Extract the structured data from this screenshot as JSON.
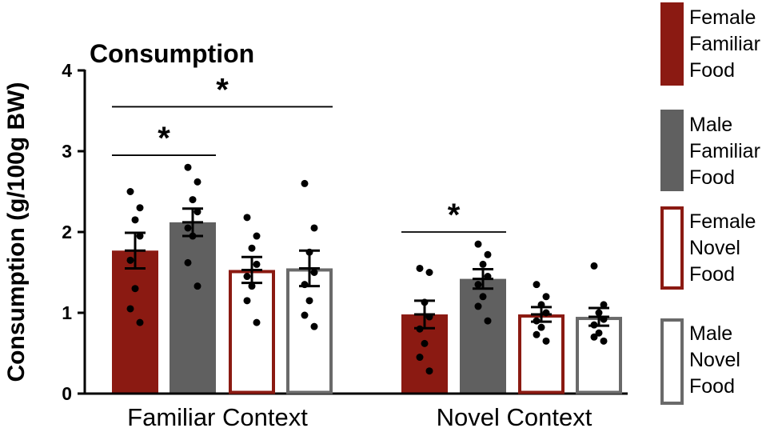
{
  "chart_data": {
    "type": "bar",
    "title": "Consumption",
    "xlabel": "",
    "ylabel": "Consumption (g/100g BW)",
    "ylim": [
      0,
      4
    ],
    "yticks": [
      0,
      1,
      2,
      3,
      4
    ],
    "categories": [
      "Familiar Context",
      "Novel Context"
    ],
    "series": [
      {
        "name": "Female Familiar Food",
        "legend_lines": [
          "Female",
          "Familiar",
          "Food"
        ],
        "fill": "#8b1a12",
        "stroke": "#8b1a12",
        "values": [
          1.77,
          0.98
        ],
        "sem": [
          0.22,
          0.17
        ],
        "points": [
          [
            2.5,
            2.3,
            2.15,
            1.95,
            1.65,
            1.3,
            1.05,
            0.88
          ],
          [
            1.55,
            1.5,
            1.13,
            0.95,
            0.8,
            0.62,
            0.45,
            0.28
          ]
        ]
      },
      {
        "name": "Male Familiar Food",
        "legend_lines": [
          "Male",
          "Familiar",
          "Food"
        ],
        "fill": "#606060",
        "stroke": "#606060",
        "values": [
          2.12,
          1.42
        ],
        "sem": [
          0.17,
          0.12
        ],
        "points": [
          [
            2.8,
            2.62,
            2.4,
            2.25,
            2.05,
            1.95,
            1.62,
            1.33
          ],
          [
            1.85,
            1.72,
            1.6,
            1.45,
            1.35,
            1.2,
            1.08,
            0.9
          ]
        ]
      },
      {
        "name": "Female Novel Food",
        "legend_lines": [
          "Female",
          "Novel",
          "Food"
        ],
        "fill": "#ffffff",
        "stroke": "#8b1a12",
        "values": [
          1.53,
          0.98
        ],
        "sem": [
          0.16,
          0.09
        ],
        "points": [
          [
            2.18,
            1.95,
            1.8,
            1.6,
            1.45,
            1.33,
            1.15,
            0.88
          ],
          [
            1.35,
            1.2,
            1.1,
            1.0,
            0.9,
            0.82,
            0.73,
            0.65
          ]
        ]
      },
      {
        "name": "Male Novel Food",
        "legend_lines": [
          "Male",
          "Novel",
          "Food"
        ],
        "fill": "#ffffff",
        "stroke": "#6a6a6a",
        "values": [
          1.55,
          0.95
        ],
        "sem": [
          0.22,
          0.11
        ],
        "points": [
          [
            2.6,
            2.05,
            1.75,
            1.5,
            1.35,
            1.15,
            0.97,
            0.83
          ],
          [
            1.58,
            1.1,
            1.0,
            0.92,
            0.85,
            0.75,
            0.7,
            0.65
          ]
        ]
      }
    ],
    "significance": [
      {
        "label": "*",
        "category": 0,
        "from_series": 0,
        "to_series": 1,
        "y": 2.95
      },
      {
        "label": "*",
        "category": 0,
        "from_series": 0,
        "to_series": 3,
        "y": 3.55
      },
      {
        "label": "*",
        "category": 1,
        "from_series": 0,
        "to_series": 1,
        "y": 2.0
      }
    ],
    "legend_position": "right",
    "grid": false
  }
}
